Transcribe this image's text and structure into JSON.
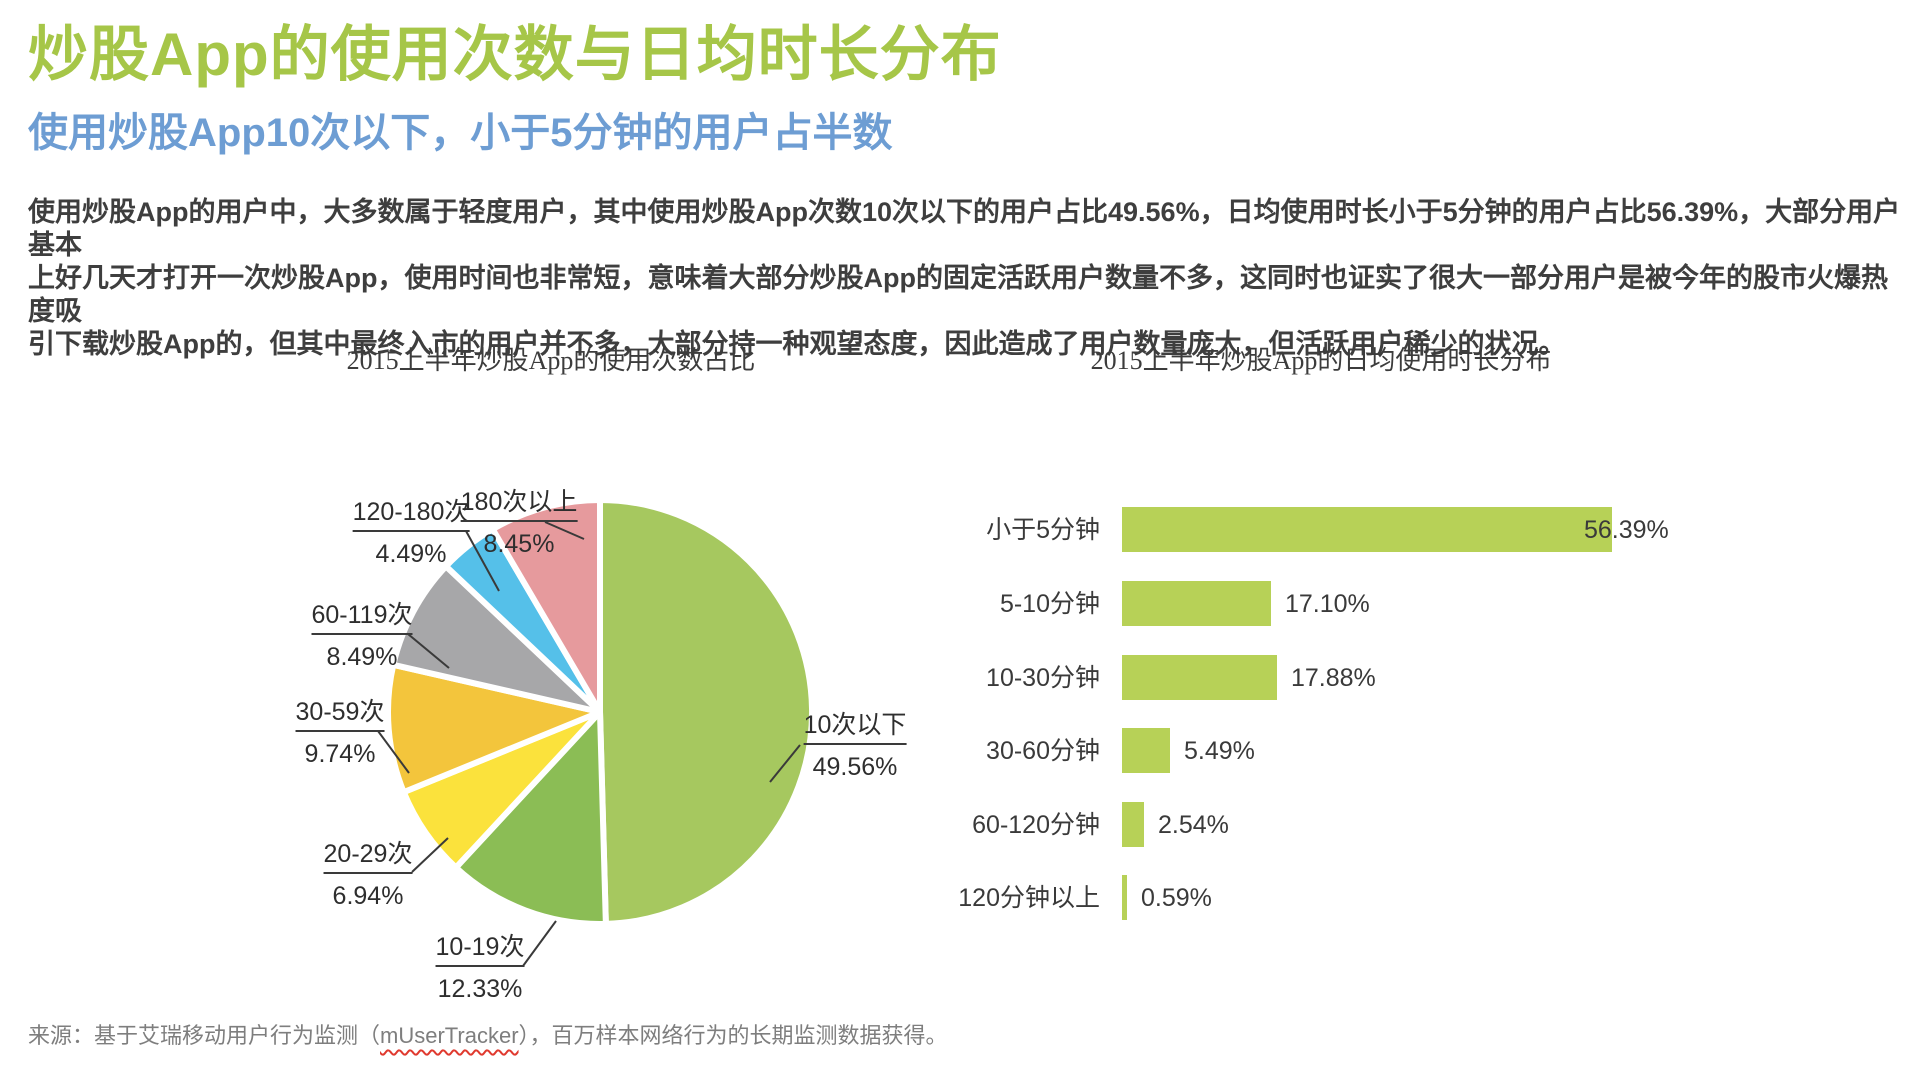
{
  "page": {
    "title": "炒股App的使用次数与日均时长分布",
    "subtitle": "使用炒股App10次以下，小于5分钟的用户占半数",
    "body_lines": [
      "使用炒股App的用户中，大多数属于轻度用户，其中使用炒股App次数10次以下的用户占比49.56%，日均使用时长小于5分钟的用户占比56.39%，大部分用户基本",
      "上好几天才打开一次炒股App，使用时间也非常短，意味着大部分炒股App的固定活跃用户数量不多，这同时也证实了很大一部分用户是被今年的股市火爆热度吸",
      "引下载炒股App的，但其中最终入市的用户并不多，大部分持一种观望态度，因此造成了用户数量庞大，但活跃用户稀少的状况。"
    ],
    "source_prefix": "来源：基于艾瑞移动用户行为监测（",
    "source_link": "mUserTracker",
    "source_suffix": "），百万样本网络行为的长期监测数据获得。"
  },
  "colors": {
    "title_green": "#a6c648",
    "subtitle_blue": "#6d9dd3",
    "body_gray": "#3e3e3e",
    "source_gray": "#7e7e7e",
    "leader_line": "#3a3a3a"
  },
  "chart_data": [
    {
      "type": "pie",
      "title": "2015上半年炒股App的使用次数占比",
      "labels": [
        "10次以下",
        "10-19次",
        "20-29次",
        "30-59次",
        "60-119次",
        "120-180次",
        "180次以上"
      ],
      "values": [
        49.56,
        12.33,
        6.94,
        9.74,
        8.49,
        4.49,
        8.45
      ],
      "value_labels": [
        "49.56%",
        "12.33%",
        "6.94%",
        "9.74%",
        "8.49%",
        "4.49%",
        "8.45%"
      ],
      "colors": [
        "#a6c85f",
        "#8bbd55",
        "#fbe23c",
        "#f3c53c",
        "#a7a7a9",
        "#55c0e9",
        "#e69a9d"
      ],
      "start_angle": "12-oclock",
      "direction": "clockwise",
      "slice_border": "#ffffff"
    },
    {
      "type": "bar",
      "title": "2015上半年炒股App的日均使用时长分布",
      "orientation": "horizontal",
      "categories": [
        "小于5分钟",
        "5-10分钟",
        "10-30分钟",
        "30-60分钟",
        "60-120分钟",
        "120分钟以上"
      ],
      "values": [
        56.39,
        17.1,
        17.88,
        5.49,
        2.54,
        0.59
      ],
      "value_labels": [
        "56.39%",
        "17.10%",
        "17.88%",
        "5.49%",
        "2.54%",
        "0.59%"
      ],
      "bar_color": "#b7d157",
      "xlim": [
        0,
        60
      ],
      "grid": "off",
      "legend": "none"
    }
  ]
}
